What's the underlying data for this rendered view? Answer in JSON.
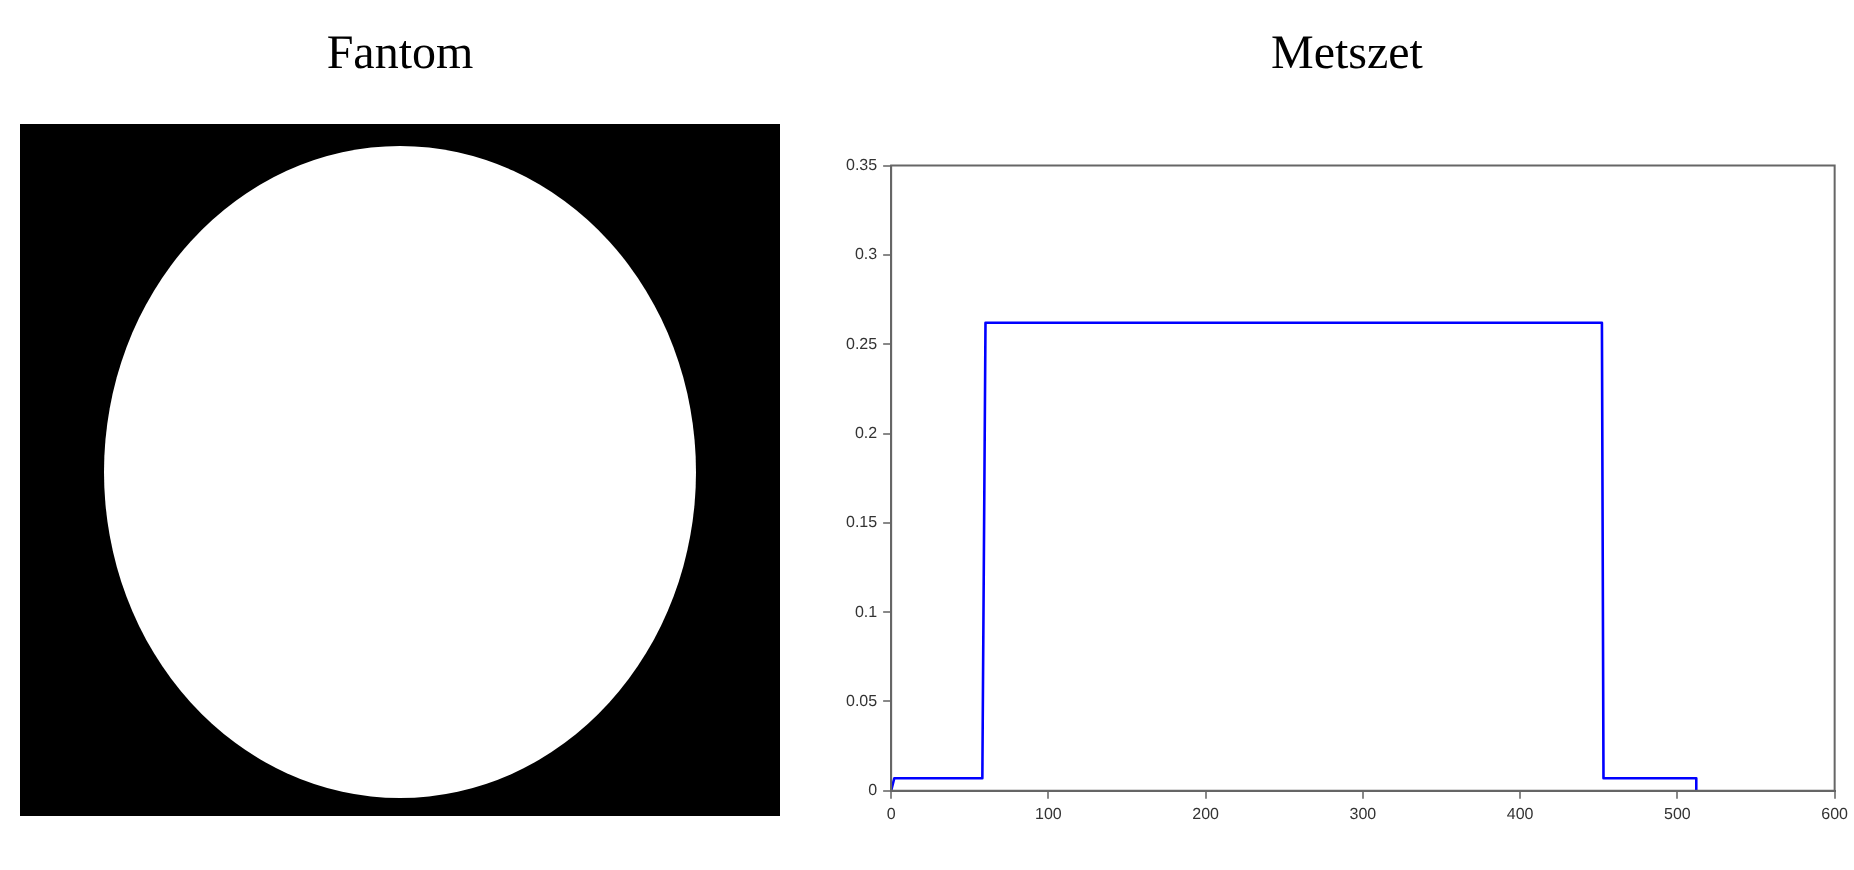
{
  "chart_data": [
    {
      "type": "other",
      "title": "Fantom"
    },
    {
      "type": "line",
      "title": "Metszet",
      "x": [
        0,
        2,
        58,
        60,
        452,
        453,
        512,
        512
      ],
      "series": [
        {
          "color": "#0000ff",
          "values": [
            0,
            0.007,
            0.007,
            0.262,
            0.262,
            0.007,
            0.007,
            0
          ]
        }
      ],
      "xlim": [
        0,
        600
      ],
      "xticks": [
        0,
        100,
        200,
        300,
        400,
        500,
        600
      ],
      "ylim": [
        0,
        0.35
      ],
      "yticks": [
        0,
        0.05,
        0.1,
        0.15,
        0.2,
        0.25,
        0.3,
        0.35
      ],
      "grid": false,
      "legend": false,
      "marker": "none",
      "line_style": "solid"
    }
  ]
}
